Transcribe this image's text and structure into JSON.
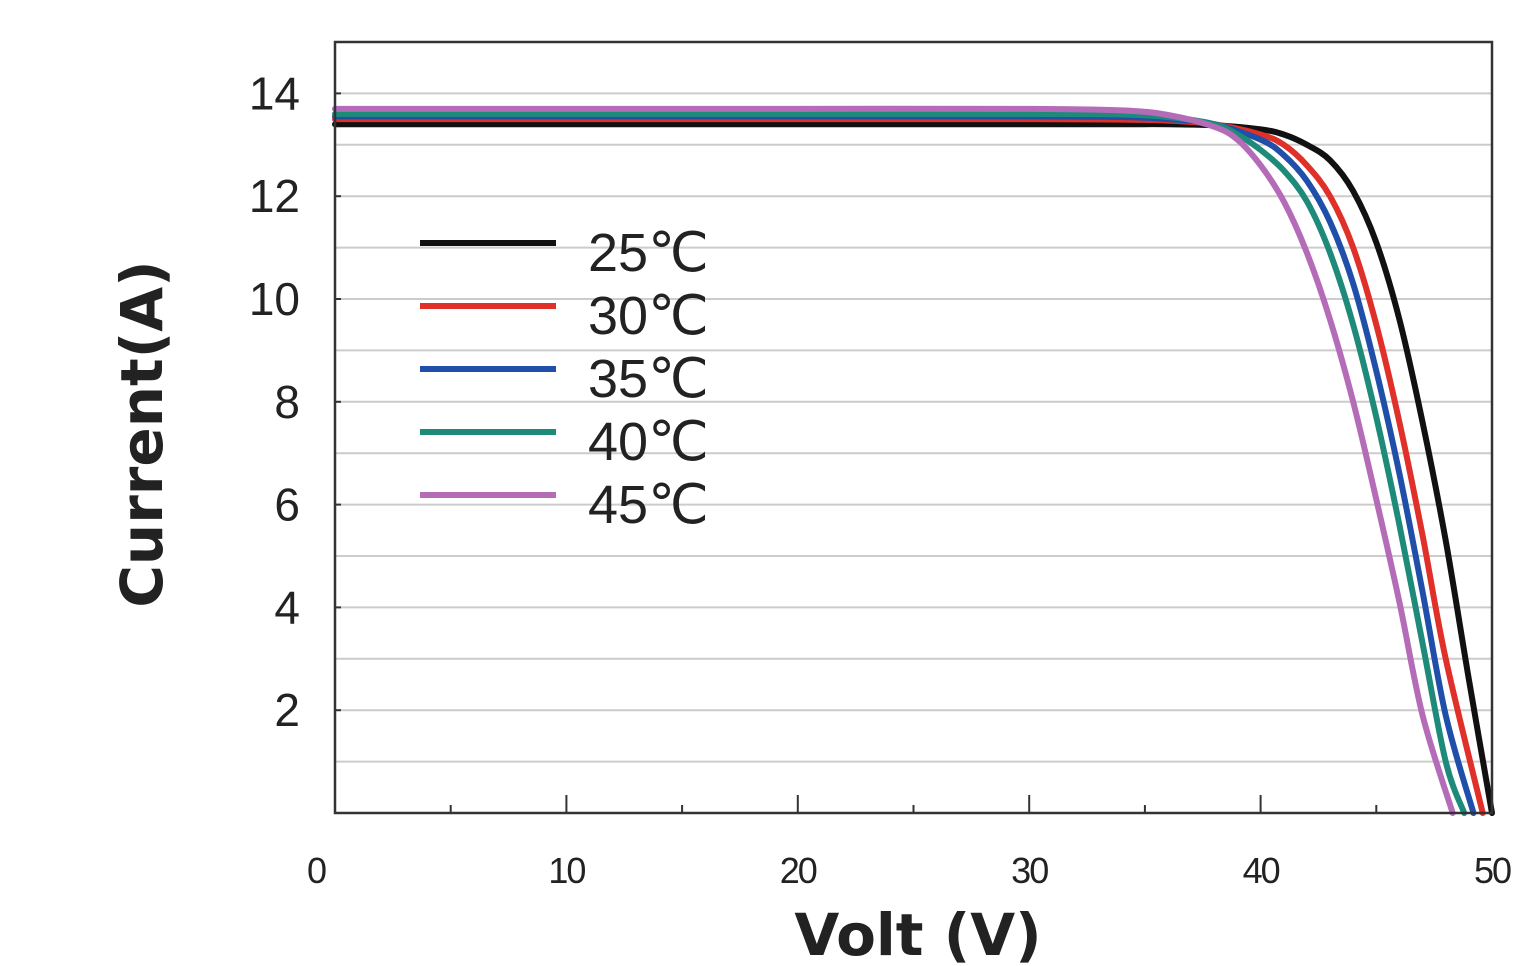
{
  "chart_data": {
    "type": "line",
    "xlabel": "Volt (V)",
    "ylabel": "Current(A)",
    "xlim": [
      0,
      50
    ],
    "ylim": [
      0,
      15
    ],
    "x_ticks": [
      "0",
      "10",
      "20",
      "30",
      "40",
      "50"
    ],
    "y_ticks": [
      "2",
      "4",
      "6",
      "8",
      "10",
      "12",
      "14"
    ],
    "grid": true,
    "legend_position": "left",
    "series": [
      {
        "name": "25℃",
        "color": "#111111",
        "points": [
          [
            0,
            13.4
          ],
          [
            10,
            13.4
          ],
          [
            20,
            13.4
          ],
          [
            30,
            13.4
          ],
          [
            34,
            13.4
          ],
          [
            36,
            13.4
          ],
          [
            38,
            13.38
          ],
          [
            40,
            13.3
          ],
          [
            41,
            13.2
          ],
          [
            42,
            13.0
          ],
          [
            43,
            12.7
          ],
          [
            44,
            12.1
          ],
          [
            45,
            11.1
          ],
          [
            46,
            9.6
          ],
          [
            47,
            7.6
          ],
          [
            48,
            5.3
          ],
          [
            49,
            2.6
          ],
          [
            50,
            0
          ]
        ]
      },
      {
        "name": "30℃",
        "color": "#e0302a",
        "points": [
          [
            0,
            13.5
          ],
          [
            10,
            13.5
          ],
          [
            20,
            13.5
          ],
          [
            30,
            13.5
          ],
          [
            34,
            13.49
          ],
          [
            36,
            13.47
          ],
          [
            38,
            13.4
          ],
          [
            40,
            13.2
          ],
          [
            41,
            13.0
          ],
          [
            42,
            12.6
          ],
          [
            43,
            12.0
          ],
          [
            44,
            11.0
          ],
          [
            45,
            9.5
          ],
          [
            46,
            7.6
          ],
          [
            47,
            5.4
          ],
          [
            48,
            3.0
          ],
          [
            49.6,
            0
          ]
        ]
      },
      {
        "name": "35℃",
        "color": "#1f4fa8",
        "points": [
          [
            0,
            13.55
          ],
          [
            10,
            13.55
          ],
          [
            20,
            13.55
          ],
          [
            30,
            13.55
          ],
          [
            34,
            13.54
          ],
          [
            36,
            13.5
          ],
          [
            38,
            13.4
          ],
          [
            40,
            13.1
          ],
          [
            41,
            12.8
          ],
          [
            42,
            12.3
          ],
          [
            43,
            11.5
          ],
          [
            44,
            10.3
          ],
          [
            45,
            8.6
          ],
          [
            46,
            6.6
          ],
          [
            47,
            4.3
          ],
          [
            48,
            1.9
          ],
          [
            49.2,
            0
          ]
        ]
      },
      {
        "name": "40℃",
        "color": "#1e8a7a",
        "points": [
          [
            0,
            13.6
          ],
          [
            10,
            13.6
          ],
          [
            20,
            13.6
          ],
          [
            30,
            13.6
          ],
          [
            34,
            13.59
          ],
          [
            36,
            13.54
          ],
          [
            38,
            13.4
          ],
          [
            39,
            13.2
          ],
          [
            40,
            12.9
          ],
          [
            41,
            12.5
          ],
          [
            42,
            11.9
          ],
          [
            43,
            10.9
          ],
          [
            44,
            9.5
          ],
          [
            45,
            7.7
          ],
          [
            46,
            5.6
          ],
          [
            47,
            3.3
          ],
          [
            48,
            1.0
          ],
          [
            48.8,
            0
          ]
        ]
      },
      {
        "name": "45℃",
        "color": "#b56cb8",
        "points": [
          [
            0,
            13.7
          ],
          [
            10,
            13.7
          ],
          [
            20,
            13.7
          ],
          [
            30,
            13.7
          ],
          [
            34,
            13.67
          ],
          [
            36,
            13.58
          ],
          [
            38,
            13.35
          ],
          [
            39,
            13.1
          ],
          [
            40,
            12.6
          ],
          [
            41,
            11.9
          ],
          [
            42,
            10.9
          ],
          [
            43,
            9.6
          ],
          [
            44,
            8.0
          ],
          [
            45,
            6.1
          ],
          [
            46,
            4.1
          ],
          [
            47,
            1.9
          ],
          [
            48.3,
            0
          ]
        ]
      }
    ]
  }
}
